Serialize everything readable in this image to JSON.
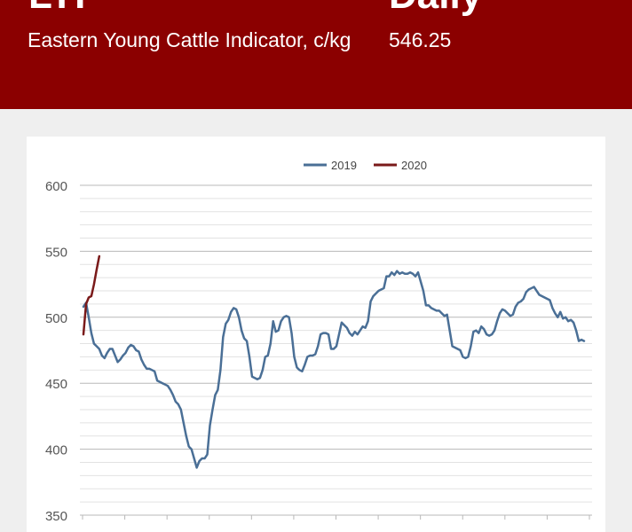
{
  "banner": {
    "title_left": "LYI",
    "title_right": "Daily",
    "indicator_label": "Eastern Young Cattle Indicator, c/kg",
    "indicator_value": "546.25"
  },
  "chart_data": {
    "type": "line",
    "title": "",
    "xlabel": "",
    "ylabel": "",
    "ylim": [
      350,
      600
    ],
    "yticks": [
      350,
      400,
      450,
      500,
      550,
      600
    ],
    "grid": true,
    "legend_position": "top-center",
    "series": [
      {
        "name": "2019",
        "color": "#4a6f96",
        "values": [
          508,
          511,
          500,
          488,
          480,
          478,
          476,
          471,
          469,
          473,
          476,
          476,
          471,
          466,
          468,
          471,
          473,
          477,
          479,
          478,
          475,
          474,
          468,
          464,
          461,
          461,
          460,
          459,
          452,
          451,
          450,
          449,
          448,
          445,
          441,
          436,
          434,
          430,
          420,
          410,
          402,
          400,
          393,
          386,
          391,
          393,
          393,
          396,
          418,
          430,
          441,
          445,
          460,
          485,
          495,
          498,
          504,
          507,
          506,
          500,
          490,
          484,
          482,
          470,
          455,
          454,
          453,
          454,
          460,
          470,
          471,
          480,
          497,
          489,
          490,
          497,
          500,
          501,
          500,
          488,
          470,
          462,
          460,
          459,
          464,
          470,
          471,
          471,
          472,
          478,
          487,
          488,
          488,
          487,
          476,
          476,
          478,
          487,
          496,
          494,
          492,
          488,
          486,
          489,
          487,
          490,
          493,
          492,
          497,
          512,
          516,
          518,
          520,
          521,
          522,
          531,
          531,
          534,
          532,
          535,
          533,
          534,
          533,
          533,
          534,
          533,
          531,
          534,
          527,
          520,
          509,
          509,
          507,
          506,
          505,
          505,
          503,
          501,
          502,
          490,
          478,
          477,
          476,
          475,
          470,
          469,
          470,
          478,
          489,
          490,
          488,
          493,
          491,
          487,
          486,
          487,
          490,
          497,
          503,
          506,
          505,
          503,
          501,
          502,
          508,
          511,
          512,
          514,
          519,
          521,
          522,
          523,
          520,
          517,
          516,
          515,
          514,
          513,
          507,
          503,
          500,
          504,
          499,
          500,
          497,
          498,
          496,
          490,
          482,
          483,
          482
        ]
      },
      {
        "name": "2020",
        "color": "#7a1a1a",
        "values": [
          487,
          510,
          515,
          516,
          525,
          536,
          546.25
        ]
      }
    ]
  }
}
